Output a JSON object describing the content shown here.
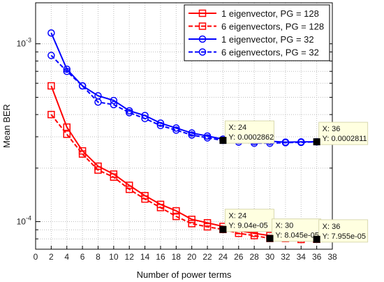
{
  "chart_data": {
    "type": "line",
    "title": "",
    "xlabel": "Number of power terms",
    "ylabel": "Mean BER",
    "yscale": "log",
    "xlim": [
      0,
      38
    ],
    "ylim": [
      7e-05,
      0.0017
    ],
    "xticks": [
      "0",
      "2",
      "4",
      "6",
      "8",
      "10",
      "12",
      "14",
      "16",
      "18",
      "20",
      "22",
      "24",
      "26",
      "28",
      "30",
      "32",
      "34",
      "36",
      "38"
    ],
    "yticks": [
      {
        "value": 0.001,
        "base": "10",
        "exp": "-3"
      },
      {
        "value": 0.0001,
        "base": "10",
        "exp": "-4"
      }
    ],
    "grid": true,
    "legend_position": "top-right",
    "x": [
      2,
      4,
      6,
      8,
      10,
      12,
      14,
      16,
      18,
      20,
      22,
      24,
      26,
      28,
      30,
      32,
      34,
      36
    ],
    "series": [
      {
        "name": "1 eigenvector, PG = 128",
        "color": "#ff0000",
        "dash": "solid",
        "marker": "square",
        "values": [
          0.00058,
          0.00034,
          0.00025,
          0.000205,
          0.000185,
          0.00016,
          0.00014,
          0.000125,
          0.000115,
          0.000103,
          9.85e-05,
          9.4e-05,
          8.9e-05,
          8.6e-05,
          8.35e-05,
          8.1e-05,
          7.95e-05,
          7.96e-05
        ]
      },
      {
        "name": "6 eigenvectors, PG = 128",
        "color": "#ff0000",
        "dash": "dashed",
        "marker": "square",
        "values": [
          0.0004,
          0.00031,
          0.00024,
          0.000195,
          0.000178,
          0.000152,
          0.000134,
          0.00012,
          0.000107,
          9.75e-05,
          9.35e-05,
          9.04e-05,
          8.6e-05,
          8.35e-05,
          8.05e-05,
          8.05e-05,
          7.95e-05,
          7.96e-05
        ]
      },
      {
        "name": "1 eigenvector, PG = 32",
        "color": "#0000ff",
        "dash": "solid",
        "marker": "circle",
        "values": [
          0.00115,
          0.00072,
          0.00058,
          0.00051,
          0.00048,
          0.00042,
          0.000395,
          0.000358,
          0.000336,
          0.000315,
          0.000303,
          0.000291,
          0.000286,
          0.000282,
          0.000283,
          0.00028,
          0.000281,
          0.0002811
        ]
      },
      {
        "name": "6 eigenvectors, PG = 32",
        "color": "#0000ff",
        "dash": "dashed",
        "marker": "circle",
        "values": [
          0.00086,
          0.0007,
          0.00058,
          0.00047,
          0.000455,
          0.00041,
          0.00038,
          0.000347,
          0.000327,
          0.000307,
          0.000296,
          0.0002862,
          0.00028,
          0.000276,
          0.000276,
          0.000278,
          0.000279,
          0.000281
        ]
      }
    ],
    "datatips": [
      {
        "x": 24,
        "y": 0.0002862,
        "line1": "X: 24",
        "line2": "Y: 0.0002862"
      },
      {
        "x": 36,
        "y": 0.0002811,
        "line1": "X: 36",
        "line2": "Y: 0.0002811"
      },
      {
        "x": 24,
        "y": 9.04e-05,
        "line1": "X: 24",
        "line2": "Y: 9.04e-05"
      },
      {
        "x": 30,
        "y": 8.045e-05,
        "line1": "X: 30",
        "line2": "Y: 8.045e-05"
      },
      {
        "x": 36,
        "y": 7.955e-05,
        "line1": "X: 36",
        "line2": "Y: 7.955e-05"
      }
    ]
  }
}
